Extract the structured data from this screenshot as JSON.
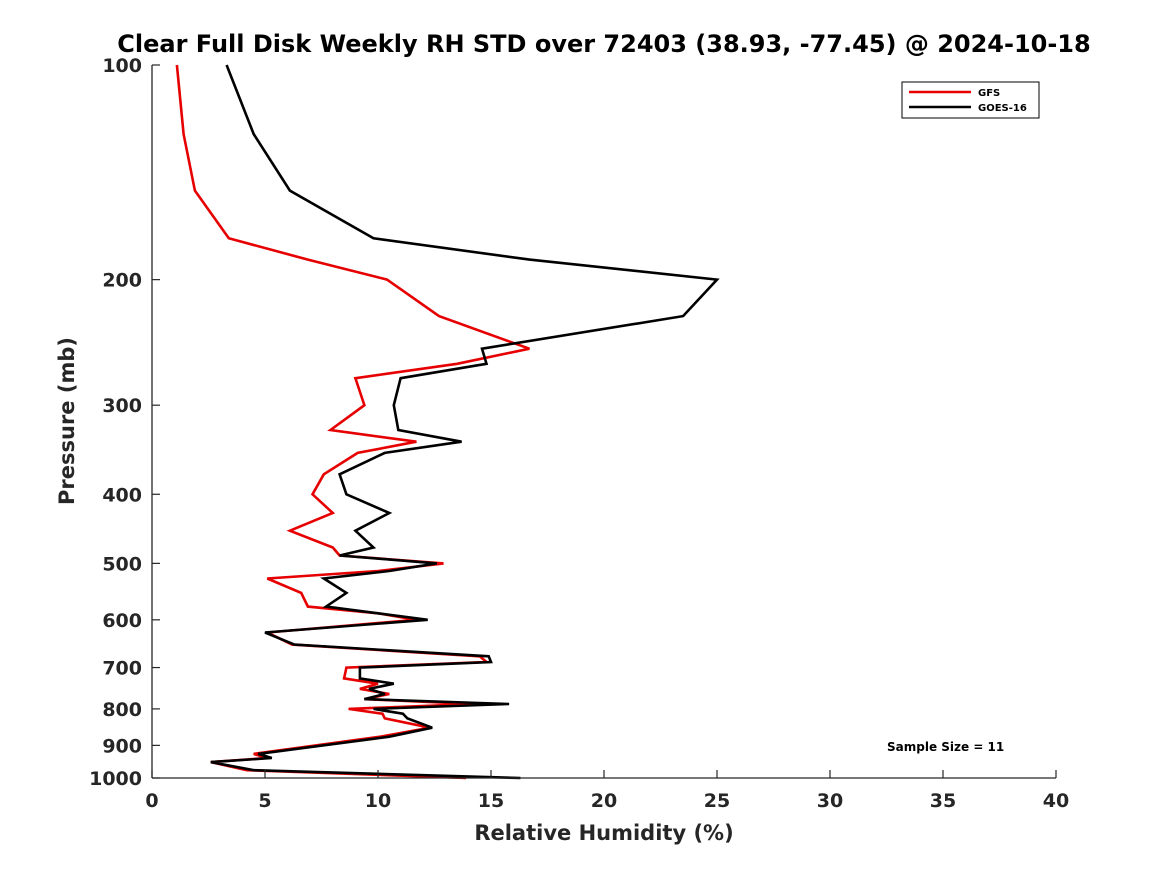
{
  "chart_data": {
    "type": "line",
    "title": "Clear Full Disk Weekly RH STD over 72403 (38.93, -77.45) @ 2024-10-18",
    "xlabel": "Relative Humidity (%)",
    "ylabel": "Pressure (mb)",
    "xlim": [
      0,
      40
    ],
    "ylim": [
      100,
      1000
    ],
    "y_scale": "log",
    "y_reversed": true,
    "x_ticks": [
      0,
      5,
      10,
      15,
      20,
      25,
      30,
      35,
      40
    ],
    "y_ticks": [
      100,
      200,
      300,
      400,
      500,
      600,
      700,
      800,
      900,
      1000
    ],
    "grid": false,
    "legend_position": "top-right",
    "annotation": "Sample Size = 11",
    "series": [
      {
        "name": "GFS",
        "color": "#e60000",
        "points": [
          [
            1.1,
            100
          ],
          [
            1.4,
            125
          ],
          [
            1.9,
            150
          ],
          [
            3.4,
            175
          ],
          [
            6.9,
            187.5
          ],
          [
            10.4,
            200
          ],
          [
            12.7,
            225
          ],
          [
            16.7,
            250
          ],
          [
            13.5,
            262.5
          ],
          [
            9.0,
            275
          ],
          [
            9.4,
            300
          ],
          [
            7.9,
            325
          ],
          [
            11.7,
            337.5
          ],
          [
            9.1,
            350
          ],
          [
            7.6,
            375
          ],
          [
            7.1,
            400
          ],
          [
            8.0,
            425
          ],
          [
            6.1,
            450
          ],
          [
            8.0,
            475
          ],
          [
            8.3,
            487.5
          ],
          [
            12.9,
            500
          ],
          [
            10.0,
            512.5
          ],
          [
            5.1,
            525
          ],
          [
            6.6,
            550
          ],
          [
            6.9,
            575
          ],
          [
            10.0,
            587.5
          ],
          [
            11.7,
            600
          ],
          [
            5.1,
            625
          ],
          [
            6.2,
            650
          ],
          [
            14.5,
            675
          ],
          [
            14.8,
            687.5
          ],
          [
            8.6,
            700
          ],
          [
            8.5,
            725
          ],
          [
            10.0,
            737.5
          ],
          [
            9.2,
            750
          ],
          [
            10.5,
            762.5
          ],
          [
            9.4,
            775
          ],
          [
            14.2,
            787.5
          ],
          [
            8.7,
            800
          ],
          [
            10.2,
            812.5
          ],
          [
            10.3,
            825
          ],
          [
            12.3,
            850
          ],
          [
            10.1,
            875
          ],
          [
            4.5,
            925
          ],
          [
            5.1,
            937.5
          ],
          [
            2.6,
            950
          ],
          [
            4.2,
            975
          ],
          [
            13.9,
            1000
          ]
        ]
      },
      {
        "name": "GOES-16",
        "color": "#000000",
        "points": [
          [
            3.3,
            100
          ],
          [
            4.5,
            125
          ],
          [
            6.1,
            150
          ],
          [
            9.8,
            175
          ],
          [
            16.7,
            187.5
          ],
          [
            25.0,
            200
          ],
          [
            23.5,
            225
          ],
          [
            14.6,
            250
          ],
          [
            14.8,
            262.5
          ],
          [
            11.0,
            275
          ],
          [
            10.7,
            300
          ],
          [
            10.9,
            325
          ],
          [
            13.7,
            337.5
          ],
          [
            10.3,
            350
          ],
          [
            8.3,
            375
          ],
          [
            8.6,
            400
          ],
          [
            10.5,
            425
          ],
          [
            9.0,
            450
          ],
          [
            9.8,
            475
          ],
          [
            8.3,
            487.5
          ],
          [
            12.6,
            500
          ],
          [
            10.5,
            512.5
          ],
          [
            7.6,
            525
          ],
          [
            8.6,
            550
          ],
          [
            7.7,
            575
          ],
          [
            10.0,
            587.5
          ],
          [
            12.2,
            600
          ],
          [
            5.0,
            625
          ],
          [
            6.3,
            650
          ],
          [
            14.9,
            675
          ],
          [
            15.0,
            687.5
          ],
          [
            9.2,
            700
          ],
          [
            9.2,
            725
          ],
          [
            10.7,
            737.5
          ],
          [
            9.6,
            750
          ],
          [
            10.3,
            762.5
          ],
          [
            9.4,
            775
          ],
          [
            15.8,
            787.5
          ],
          [
            9.8,
            800
          ],
          [
            11.1,
            812.5
          ],
          [
            11.3,
            825
          ],
          [
            12.4,
            850
          ],
          [
            10.5,
            875
          ],
          [
            4.7,
            925
          ],
          [
            5.3,
            937.5
          ],
          [
            2.6,
            950
          ],
          [
            4.5,
            975
          ],
          [
            16.3,
            1000
          ]
        ]
      }
    ]
  }
}
